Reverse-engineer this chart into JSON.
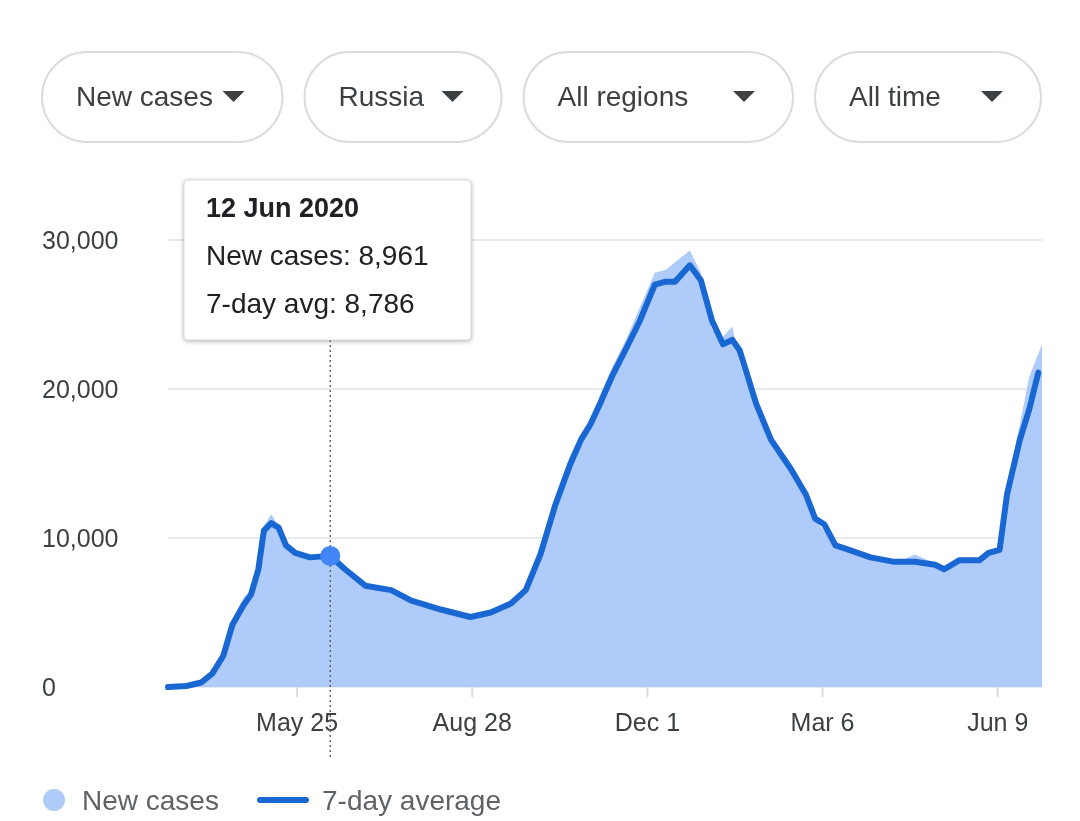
{
  "chart_data": {
    "type": "area",
    "x": [
      "2020-03-16",
      "2020-03-26",
      "2020-04-03",
      "2020-04-09",
      "2020-04-15",
      "2020-04-20",
      "2020-04-26",
      "2020-04-30",
      "2020-05-04",
      "2020-05-07",
      "2020-05-11",
      "2020-05-15",
      "2020-05-19",
      "2020-05-24",
      "2020-06-01",
      "2020-06-12",
      "2020-06-20",
      "2020-07-01",
      "2020-07-15",
      "2020-07-26",
      "2020-08-11",
      "2020-08-27",
      "2020-09-07",
      "2020-09-18",
      "2020-09-26",
      "2020-10-04",
      "2020-10-12",
      "2020-10-20",
      "2020-10-26",
      "2020-10-31",
      "2020-11-06",
      "2020-11-12",
      "2020-11-19",
      "2020-11-27",
      "2020-12-05",
      "2020-12-11",
      "2020-12-16",
      "2020-12-24",
      "2020-12-30",
      "2021-01-05",
      "2021-01-11",
      "2021-01-16",
      "2021-01-20",
      "2021-01-29",
      "2021-02-06",
      "2021-02-17",
      "2021-02-25",
      "2021-03-02",
      "2021-03-07",
      "2021-03-13",
      "2021-03-18",
      "2021-04-01",
      "2021-04-14",
      "2021-04-25",
      "2021-05-06",
      "2021-05-11",
      "2021-05-19",
      "2021-05-30",
      "2021-06-04",
      "2021-06-10",
      "2021-06-14",
      "2021-06-21",
      "2021-06-26",
      "2021-07-01"
    ],
    "series": [
      {
        "name": "New cases",
        "color": "#aecbfa",
        "x": [
          "2020-03-16",
          "2020-03-26",
          "2020-04-03",
          "2020-04-09",
          "2020-04-15",
          "2020-04-20",
          "2020-04-26",
          "2020-04-30",
          "2020-05-04",
          "2020-05-07",
          "2020-05-11",
          "2020-05-15",
          "2020-05-19",
          "2020-05-24",
          "2020-06-01",
          "2020-06-05",
          "2020-06-20",
          "2020-07-01",
          "2020-07-15",
          "2020-07-26",
          "2020-08-11",
          "2020-08-27",
          "2020-09-07",
          "2020-09-18",
          "2020-09-26",
          "2020-10-04",
          "2020-10-12",
          "2020-10-20",
          "2020-10-26",
          "2020-10-31",
          "2020-11-06",
          "2020-11-12",
          "2020-11-19",
          "2020-11-27",
          "2020-12-05",
          "2020-12-11",
          "2020-12-16",
          "2020-12-24",
          "2020-12-30",
          "2021-01-05",
          "2021-01-11",
          "2021-01-16",
          "2021-01-20",
          "2021-01-29",
          "2021-02-06",
          "2021-02-17",
          "2021-02-25",
          "2021-03-02",
          "2021-03-07",
          "2021-03-13",
          "2021-03-18",
          "2021-04-01",
          "2021-04-14",
          "2021-04-25",
          "2021-05-06",
          "2021-05-11",
          "2021-05-19",
          "2021-05-30",
          "2021-06-04",
          "2021-06-10",
          "2021-06-14",
          "2021-06-21",
          "2021-06-26",
          "2021-07-03"
        ],
        "values": [
          0,
          100,
          400,
          1100,
          2400,
          4500,
          6000,
          6500,
          8500,
          10800,
          11600,
          10800,
          9600,
          9100,
          8800,
          8900,
          7900,
          6700,
          6400,
          5800,
          5100,
          4800,
          5100,
          5700,
          6800,
          9500,
          12800,
          15500,
          17000,
          18000,
          19800,
          21500,
          23200,
          25500,
          27800,
          28000,
          28500,
          29300,
          27800,
          24000,
          23500,
          24200,
          21800,
          18500,
          16400,
          14300,
          12600,
          11100,
          10500,
          9400,
          9200,
          8600,
          8300,
          8900,
          8300,
          7900,
          8600,
          8500,
          8900,
          9500,
          13500,
          17600,
          20800,
          23000
        ]
      },
      {
        "name": "7-day average",
        "type": "line",
        "color": "#1967d2",
        "values": [
          0,
          70,
          300,
          900,
          2100,
          4200,
          5500,
          6200,
          7900,
          10500,
          11000,
          10700,
          9500,
          9000,
          8700,
          8800,
          7900,
          6800,
          6500,
          5800,
          5200,
          4700,
          5000,
          5600,
          6500,
          8900,
          12200,
          14900,
          16600,
          17600,
          19200,
          20900,
          22600,
          24600,
          27000,
          27200,
          27200,
          28300,
          27300,
          24600,
          23000,
          23300,
          22600,
          19000,
          16600,
          14600,
          12900,
          11300,
          10900,
          9500,
          9300,
          8700,
          8400,
          8400,
          8200,
          7900,
          8500,
          8500,
          9000,
          9200,
          12900,
          16600,
          18600,
          21100
        ]
      }
    ],
    "xlim": [
      "2020-03-16",
      "2021-07-03"
    ],
    "xticks": [
      {
        "value": "2020-05-25",
        "label": "May 25"
      },
      {
        "value": "2020-08-28",
        "label": "Aug 28"
      },
      {
        "value": "2020-12-01",
        "label": "Dec 1"
      },
      {
        "value": "2021-03-06",
        "label": "Mar 6"
      },
      {
        "value": "2021-06-09",
        "label": "Jun 9"
      }
    ],
    "ylim": [
      0,
      30000
    ],
    "yticks": [
      0,
      {
        "value": 10000,
        "label": "10,000"
      },
      {
        "value": 20000,
        "label": "20,000"
      },
      {
        "value": 30000,
        "label": "30,000"
      }
    ],
    "grid": "y",
    "legend": "bottom left",
    "ref_lines": [
      {
        "axis": "x",
        "value": "2020-06-12",
        "line_style": "dotted",
        "color": "#5f6368"
      }
    ],
    "annotations": [
      "New cases",
      "Russia",
      "All regions",
      "All time",
      "12 Jun 2020\nNew cases: 8,961\n7-day avg: 8,786"
    ]
  }
}
